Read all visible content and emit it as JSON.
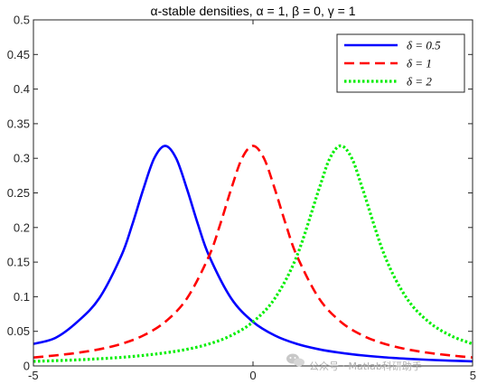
{
  "chart_data": {
    "type": "line",
    "title": "α-stable densities, α = 1, β = 0, γ = 1",
    "xlabel": "",
    "ylabel": "",
    "xlim": [
      -5,
      5
    ],
    "ylim": [
      0,
      0.5
    ],
    "xticks": [
      "-5",
      "0",
      "5"
    ],
    "yticks": [
      "0",
      "0.05",
      "0.1",
      "0.15",
      "0.2",
      "0.25",
      "0.3",
      "0.35",
      "0.4",
      "0.45",
      "0.5"
    ],
    "grid": false,
    "legend_position": "top-right",
    "series": [
      {
        "name": "δ = 0.5",
        "color": "#0000ff",
        "dash": "solid",
        "x": [
          -5,
          -4.5,
          -4,
          -3.5,
          -3,
          -2.75,
          -2.5,
          -2.25,
          -2,
          -1.75,
          -1.5,
          -1.25,
          -1,
          -0.5,
          0,
          0.5,
          1,
          1.5,
          2,
          2.5,
          3,
          3.5,
          4,
          4.5,
          5
        ],
        "y": [
          0.0318,
          0.0405,
          0.0637,
          0.0979,
          0.159,
          0.204,
          0.255,
          0.3,
          0.318,
          0.3,
          0.255,
          0.204,
          0.159,
          0.0979,
          0.0637,
          0.0439,
          0.0318,
          0.0241,
          0.0189,
          0.0152,
          0.0124,
          0.0104,
          0.0088,
          0.0076,
          0.0066
        ]
      },
      {
        "name": "δ = 1",
        "color": "#ff0000",
        "dash": "dashed",
        "x": [
          -5,
          -4.5,
          -4,
          -3.5,
          -3,
          -2.5,
          -2,
          -1.5,
          -1,
          -0.75,
          -0.5,
          -0.25,
          0,
          0.25,
          0.5,
          0.75,
          1,
          1.5,
          2,
          2.5,
          3,
          3.5,
          4,
          4.5,
          5
        ],
        "y": [
          0.0122,
          0.0152,
          0.0189,
          0.0241,
          0.0318,
          0.0439,
          0.0637,
          0.0979,
          0.159,
          0.204,
          0.255,
          0.3,
          0.318,
          0.3,
          0.255,
          0.204,
          0.159,
          0.0979,
          0.0637,
          0.0439,
          0.0318,
          0.0241,
          0.0189,
          0.0152,
          0.0122
        ]
      },
      {
        "name": "δ = 2",
        "color": "#00ee00",
        "dash": "dotted",
        "x": [
          -5,
          -4.5,
          -4,
          -3.5,
          -3,
          -2.5,
          -2,
          -1.5,
          -1,
          -0.5,
          0,
          0.5,
          1,
          1.5,
          1.75,
          2,
          2.25,
          2.5,
          3,
          3.5,
          4,
          4.5,
          5
        ],
        "y": [
          0.0066,
          0.0076,
          0.0088,
          0.0104,
          0.0124,
          0.0152,
          0.0189,
          0.0241,
          0.0318,
          0.0439,
          0.0637,
          0.0979,
          0.159,
          0.255,
          0.3,
          0.318,
          0.3,
          0.255,
          0.159,
          0.0979,
          0.0637,
          0.0439,
          0.0318
        ]
      }
    ]
  },
  "watermark": {
    "icon": "wechat-icon",
    "text": "公众号 · Matlab科研助手"
  }
}
